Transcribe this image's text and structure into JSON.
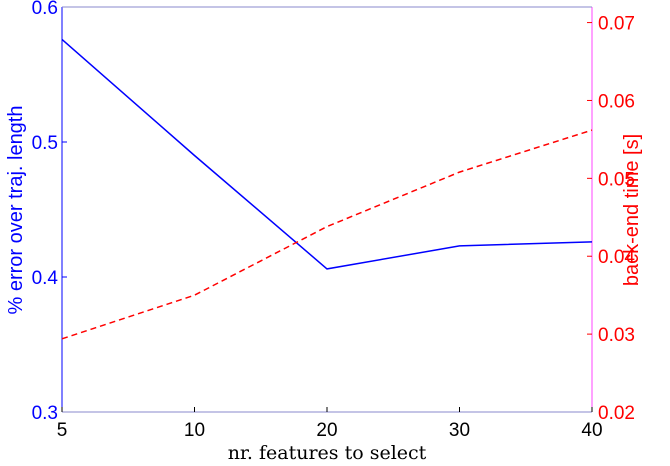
{
  "chart_data": {
    "type": "line",
    "x": [
      5,
      10,
      20,
      30,
      40
    ],
    "x_tick_labels": [
      "5",
      "10",
      "20",
      "30",
      "40"
    ],
    "xlabel": "nr. features to select",
    "y_left": {
      "label": "% error over traj. length",
      "range": [
        0.3,
        0.6
      ],
      "ticks": [
        "0.3",
        "0.4",
        "0.5",
        "0.6"
      ],
      "color": "#0000ff"
    },
    "y_right": {
      "label": "back-end time [s]",
      "range": [
        0.02,
        0.072
      ],
      "ticks": [
        "0.02",
        "0.03",
        "0.04",
        "0.05",
        "0.06",
        "0.07"
      ],
      "color": "#ff0000"
    },
    "series": [
      {
        "axis": "left",
        "style": "solid",
        "color": "#0000ff",
        "values": [
          0.576,
          0.49,
          0.406,
          0.423,
          0.426
        ]
      },
      {
        "axis": "right",
        "style": "dashed",
        "color": "#ff0000",
        "values": [
          0.0294,
          0.035,
          0.0438,
          0.0508,
          0.0562
        ]
      }
    ],
    "grid": false,
    "legend": "none"
  }
}
